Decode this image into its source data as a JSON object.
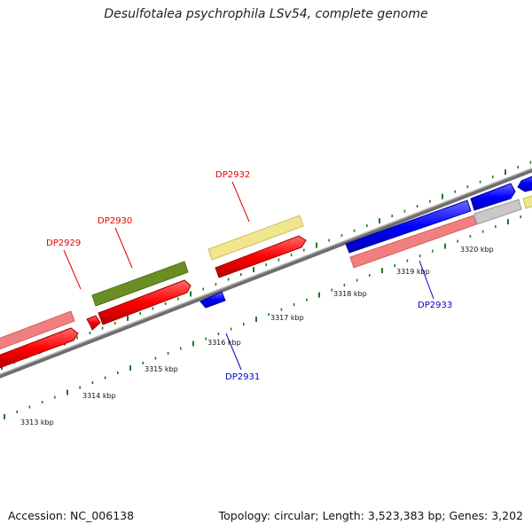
{
  "title": "Desulfotalea psychrophila LSv54, complete genome",
  "accession_text": "Accession: NC_006138",
  "topology_text": "Topology: circular; Length: 3,523,383 bp; Genes: 3,202",
  "colors": {
    "backbone": "#8c8c8c",
    "tick": "#1f7a1f",
    "forward_label": "#e00000",
    "reverse_label": "#0000c0",
    "cds_red": "#ff0000",
    "cds_pink": "#f08080",
    "cds_blue": "#0000ff",
    "cds_olive": "#6b8e23",
    "cds_yellow": "#f0e68c",
    "cds_gray": "#c8c8c8"
  },
  "scale_labels": [
    "3313 kbp",
    "3314 kbp",
    "3315 kbp",
    "3316 kbp",
    "3317 kbp",
    "3318 kbp",
    "3319 kbp",
    "3320 kbp"
  ],
  "gene_labels": [
    {
      "text": "DP2929",
      "strand": "forward"
    },
    {
      "text": "DP2930",
      "strand": "forward"
    },
    {
      "text": "DP2932",
      "strand": "forward"
    },
    {
      "text": "DP2931",
      "strand": "reverse"
    },
    {
      "text": "DP2933",
      "strand": "reverse"
    }
  ]
}
